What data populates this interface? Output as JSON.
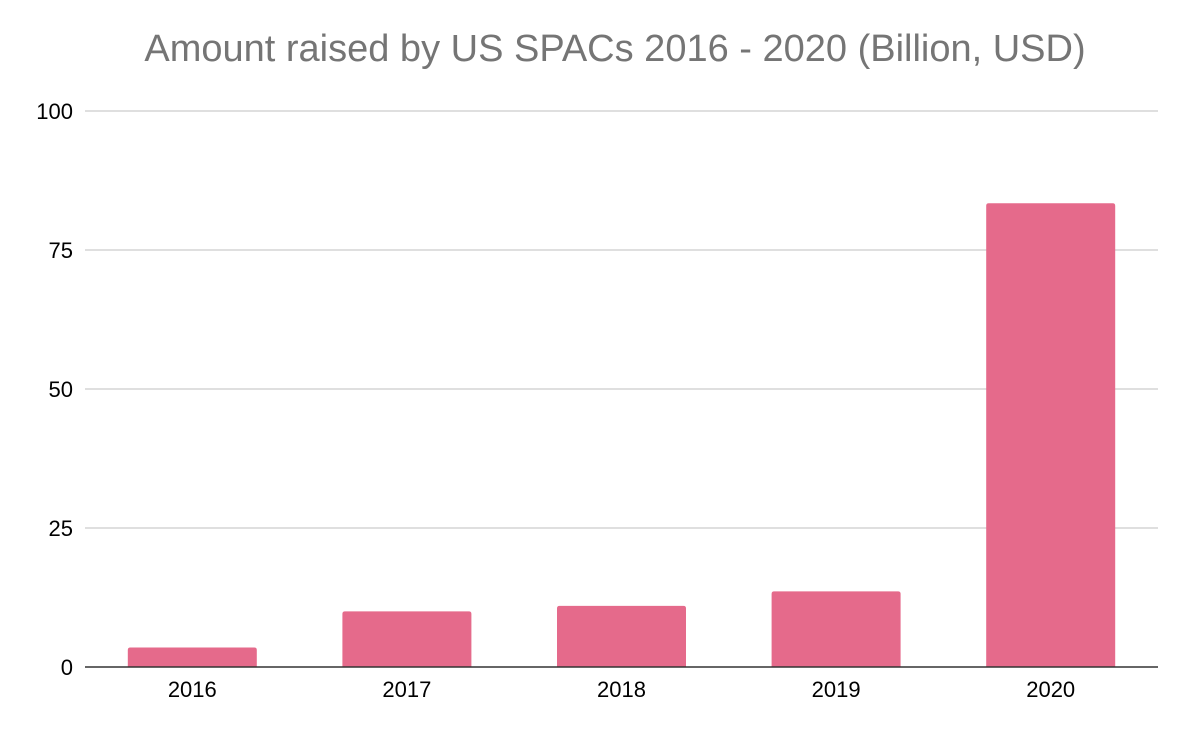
{
  "chart_data": {
    "type": "bar",
    "title": "Amount raised by US SPACs 2016 - 2020 (Billion, USD)",
    "xlabel": "",
    "ylabel": "",
    "categories": [
      "2016",
      "2017",
      "2018",
      "2019",
      "2020"
    ],
    "values": [
      3.5,
      10,
      11,
      13.6,
      83.4
    ],
    "ylim": [
      0,
      100
    ],
    "yticks": [
      0,
      25,
      50,
      75,
      100
    ],
    "grid": true,
    "legend": "none",
    "colors": {
      "bar": "#e56a8b",
      "grid": "#cccccc",
      "axis": "#333333",
      "title": "#757575"
    }
  }
}
